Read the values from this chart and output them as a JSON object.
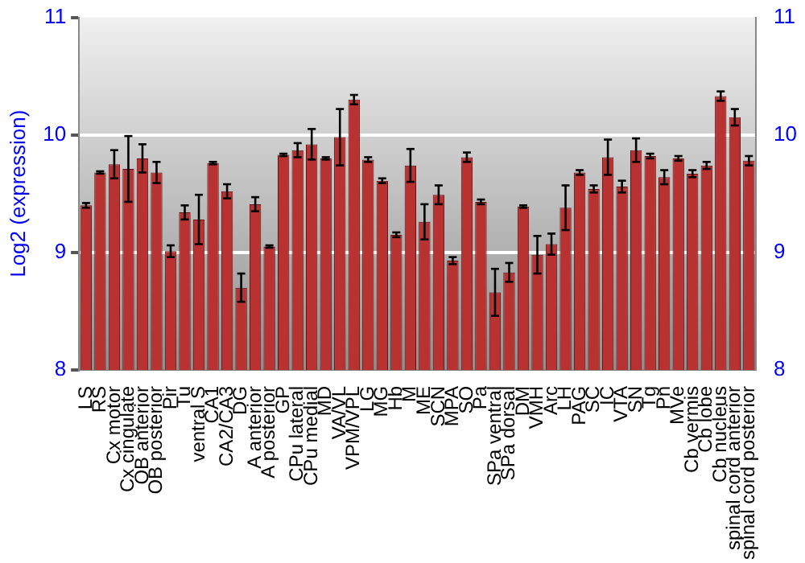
{
  "chart_data": {
    "type": "bar",
    "ylabel": "Log2 (expression)",
    "categories": [
      "LS",
      "RS",
      "Cx motor",
      "Cx cingulate",
      "OB anterior",
      "OB posterior",
      "Pir",
      "Tu",
      "ventral S",
      "CA1",
      "CA2/CA3",
      "DG",
      "A anterior",
      "A posterior",
      "GP",
      "CPu lateral",
      "CPu medial",
      "MD",
      "VA/VL",
      "VPM/VPL",
      "LG",
      "MG",
      "Hb",
      "M",
      "ME",
      "SCN",
      "MPA",
      "SO",
      "Pa",
      "SPa ventral",
      "SPa dorsal",
      "DM",
      "VMH",
      "Arc",
      "LH",
      "PAG",
      "SC",
      "IC",
      "VTA",
      "SN",
      "Tg",
      "Pn",
      "MVe",
      "Cb vermis",
      "Cb lobe",
      "Cb nucleus",
      "spinal cord anterior",
      "spinal cord posterior"
    ],
    "values": [
      9.4,
      9.68,
      9.75,
      9.71,
      9.8,
      9.68,
      9.01,
      9.34,
      9.28,
      9.76,
      9.52,
      8.7,
      9.41,
      9.05,
      9.83,
      9.87,
      9.92,
      9.8,
      9.98,
      10.3,
      9.79,
      9.61,
      9.15,
      9.74,
      9.26,
      9.49,
      8.93,
      9.81,
      9.43,
      8.66,
      8.83,
      9.39,
      8.98,
      9.07,
      9.38,
      9.68,
      9.54,
      9.81,
      9.56,
      9.87,
      9.82,
      9.64,
      9.8,
      9.67,
      9.74,
      10.33,
      10.15,
      9.78
    ],
    "errors": [
      0.02,
      0.01,
      0.12,
      0.28,
      0.12,
      0.09,
      0.05,
      0.06,
      0.21,
      0.01,
      0.06,
      0.12,
      0.06,
      0.01,
      0.01,
      0.06,
      0.13,
      0.01,
      0.24,
      0.04,
      0.02,
      0.02,
      0.02,
      0.14,
      0.15,
      0.08,
      0.03,
      0.04,
      0.02,
      0.2,
      0.08,
      0.01,
      0.16,
      0.09,
      0.19,
      0.02,
      0.03,
      0.15,
      0.05,
      0.1,
      0.02,
      0.06,
      0.02,
      0.03,
      0.03,
      0.04,
      0.07,
      0.04
    ],
    "color": "#b83232",
    "ylim": [
      8,
      11
    ],
    "yticks": [
      8,
      9,
      10,
      11
    ],
    "y2lim": [
      8,
      11
    ],
    "y2ticks": [
      8,
      9,
      10,
      11
    ],
    "grid": "y",
    "legend": false
  }
}
